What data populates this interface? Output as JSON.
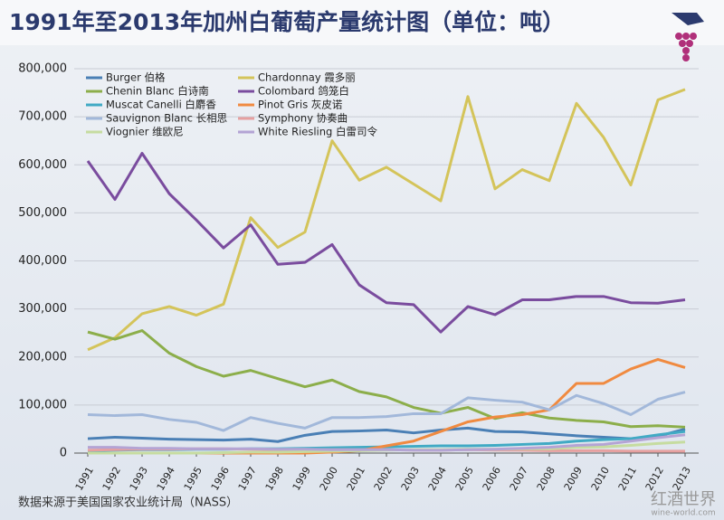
{
  "chart_data": {
    "type": "line",
    "title": "1991年至2013年加州白葡萄产量统计图（单位：吨）",
    "source": "数据来源于美国国家农业统计局（NASS）",
    "logo": "红酒世界",
    "logo_url": "wine-world.com",
    "categories": [
      "1991",
      "1992",
      "1993",
      "1994",
      "1995",
      "1996",
      "1997",
      "1998",
      "1999",
      "2000",
      "2001",
      "2002",
      "2003",
      "2004",
      "2005",
      "2006",
      "2007",
      "2008",
      "2009",
      "2010",
      "2011",
      "2012",
      "2013"
    ],
    "ylim": [
      0,
      800000
    ],
    "yticks": [
      0,
      {
        "value": 100000,
        "label": "100,000"
      },
      {
        "value": 200000,
        "label": "200,000"
      },
      {
        "value": 300000,
        "label": "300,000"
      },
      {
        "value": 400000,
        "label": "400,000"
      },
      {
        "value": 500000,
        "label": "500,000"
      },
      {
        "value": 600000,
        "label": "600,000"
      },
      {
        "value": 700000,
        "label": "700,000"
      },
      {
        "value": 800000,
        "label": "800,000"
      }
    ],
    "grid": true,
    "series": [
      {
        "name": "Burger  伯格",
        "color": "#4a7fb5",
        "values": [
          30000,
          33000,
          31000,
          29000,
          28000,
          27000,
          29000,
          24000,
          37000,
          45000,
          46000,
          48000,
          42000,
          48000,
          52000,
          45000,
          44000,
          40000,
          36000,
          33000,
          30000,
          35000,
          50000
        ]
      },
      {
        "name": "Chardonnay  霞多丽",
        "color": "#d4c45a",
        "values": [
          215000,
          240000,
          290000,
          305000,
          287000,
          310000,
          490000,
          428000,
          460000,
          650000,
          568000,
          595000,
          560000,
          525000,
          742000,
          550000,
          590000,
          567000,
          728000,
          657000,
          558000,
          735000,
          757000
        ]
      },
      {
        "name": "Chenin Blanc  白诗南",
        "color": "#8cae4a",
        "values": [
          252000,
          237000,
          255000,
          208000,
          180000,
          160000,
          172000,
          155000,
          138000,
          152000,
          128000,
          117000,
          95000,
          83000,
          95000,
          72000,
          84000,
          73000,
          68000,
          65000,
          55000,
          57000,
          54000
        ]
      },
      {
        "name": "Colombard  鸽笼白",
        "color": "#7a4c9e",
        "values": [
          608000,
          528000,
          624000,
          540000,
          485000,
          427000,
          475000,
          393000,
          397000,
          434000,
          350000,
          313000,
          309000,
          252000,
          305000,
          288000,
          319000,
          319000,
          326000,
          326000,
          313000,
          312000,
          319000
        ]
      },
      {
        "name": "Muscat Canelli 白麝香",
        "color": "#40aac4",
        "values": [
          5000,
          6000,
          7000,
          7000,
          8000,
          8000,
          9000,
          9000,
          10000,
          11000,
          12000,
          13000,
          14000,
          15000,
          15000,
          16000,
          18000,
          20000,
          25000,
          28000,
          30000,
          38000,
          45000
        ]
      },
      {
        "name": "Pinot Gris  灰皮诺",
        "color": "#f08a40",
        "values": [
          0,
          0,
          0,
          0,
          0,
          0,
          0,
          0,
          0,
          2000,
          5000,
          15000,
          25000,
          45000,
          65000,
          75000,
          80000,
          90000,
          145000,
          145000,
          175000,
          195000,
          178000
        ]
      },
      {
        "name": "Sauvignon Blanc  长相思",
        "color": "#a2b8da",
        "values": [
          80000,
          78000,
          80000,
          70000,
          64000,
          47000,
          74000,
          62000,
          52000,
          74000,
          74000,
          76000,
          82000,
          82000,
          115000,
          110000,
          106000,
          90000,
          120000,
          103000,
          80000,
          112000,
          127000
        ]
      },
      {
        "name": "Symphony  协奏曲",
        "color": "#e6a0a0",
        "values": [
          6000,
          7000,
          8000,
          8000,
          9000,
          9000,
          8000,
          7000,
          7000,
          7000,
          7000,
          7000,
          6000,
          6000,
          7000,
          6000,
          6000,
          5000,
          5000,
          5000,
          4000,
          4000,
          4000
        ]
      },
      {
        "name": "Viognier  维欧尼",
        "color": "#c6dca0",
        "values": [
          0,
          0,
          0,
          0,
          0,
          1000,
          2000,
          2000,
          3000,
          4000,
          5000,
          6000,
          7000,
          7000,
          8000,
          8000,
          9000,
          9000,
          12000,
          13000,
          16000,
          20000,
          23000
        ]
      },
      {
        "name": "White Riesling  白雷司令",
        "color": "#b4a4d4",
        "values": [
          12000,
          12000,
          10000,
          10000,
          9000,
          9000,
          9000,
          8000,
          8000,
          7000,
          7000,
          7000,
          6000,
          6000,
          7000,
          8000,
          10000,
          12000,
          16000,
          18000,
          25000,
          32000,
          38000
        ]
      }
    ]
  }
}
